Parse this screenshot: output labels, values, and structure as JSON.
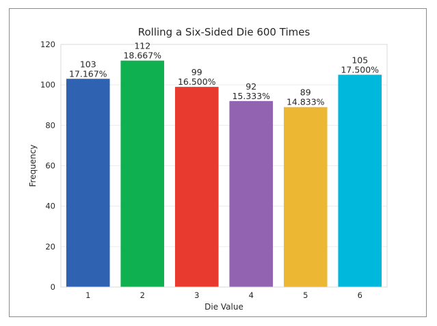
{
  "chart_data": {
    "type": "bar",
    "title": "Rolling a Six-Sided Die 600 Times",
    "xlabel": "Die Value",
    "ylabel": "Frequency",
    "categories": [
      "1",
      "2",
      "3",
      "4",
      "5",
      "6"
    ],
    "values": [
      103,
      112,
      99,
      92,
      89,
      105
    ],
    "percent_labels": [
      "17.167%",
      "18.667%",
      "16.500%",
      "15.333%",
      "14.833%",
      "17.500%"
    ],
    "colors": [
      "#2f62b1",
      "#0eb04f",
      "#e83a2f",
      "#9163b0",
      "#ecb834",
      "#00b8dc"
    ],
    "ylim": [
      0,
      120
    ],
    "yticks": [
      0,
      20,
      40,
      60,
      80,
      100,
      120
    ],
    "grid": true
  }
}
